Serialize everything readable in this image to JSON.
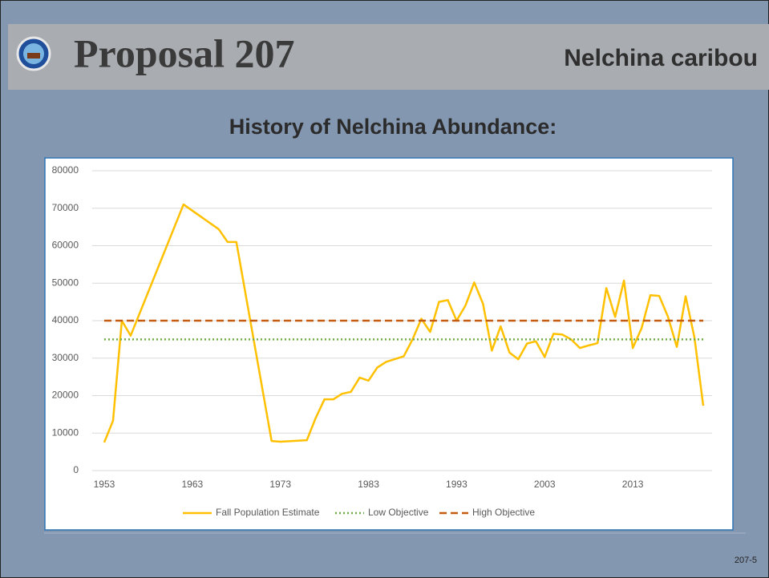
{
  "slide": {
    "title": "Proposal 207",
    "topic": "Nelchina caribou",
    "heading": "History of Nelchina Abundance:",
    "page_number": "207-5"
  },
  "chart_data": {
    "type": "line",
    "x": [
      1953,
      1954,
      1955,
      1956,
      1962,
      1966,
      1967,
      1968,
      1972,
      1973,
      1976,
      1977,
      1978,
      1979,
      1980,
      1981,
      1982,
      1983,
      1984,
      1985,
      1987,
      1988,
      1989,
      1990,
      1991,
      1992,
      1993,
      1994,
      1995,
      1996,
      1997,
      1998,
      1999,
      2000,
      2001,
      2002,
      2003,
      2004,
      2005,
      2006,
      2007,
      2008,
      2009,
      2010,
      2011,
      2012,
      2013,
      2014,
      2015,
      2016,
      2017,
      2018,
      2019,
      2020,
      2021
    ],
    "series": [
      {
        "name": "Fall Population Estimate",
        "color": "#ffc000",
        "style": "solid",
        "values": [
          7500,
          13300,
          40000,
          36000,
          71000,
          64400,
          61000,
          61000,
          7900,
          7700,
          8100,
          14000,
          19000,
          19000,
          20500,
          21000,
          24800,
          24000,
          27500,
          29000,
          30500,
          35000,
          40500,
          37000,
          45000,
          45500,
          40000,
          44000,
          50200,
          44500,
          32000,
          38500,
          31500,
          29700,
          33900,
          34500,
          30300,
          36500,
          36300,
          35000,
          32700,
          33400,
          34000,
          48700,
          41000,
          50700,
          32700,
          38000,
          46800,
          46600,
          41000,
          33000,
          46500,
          35500,
          17300
        ]
      },
      {
        "name": "Low Objective",
        "color": "#70ad47",
        "style": "dotted",
        "x": [
          1953,
          2021
        ],
        "values": [
          35000,
          35000
        ]
      },
      {
        "name": "High Objective",
        "color": "#c55a11",
        "style": "dashed",
        "x": [
          1953,
          2021
        ],
        "values": [
          40000,
          40000
        ]
      }
    ],
    "xlim": [
      1951,
      2022
    ],
    "xticks": [
      1953,
      1963,
      1973,
      1983,
      1993,
      2003,
      2013
    ],
    "ylim": [
      0,
      80000
    ],
    "yticks": [
      0,
      10000,
      20000,
      30000,
      40000,
      50000,
      60000,
      70000,
      80000
    ],
    "grid": true,
    "legend": "bottom"
  }
}
